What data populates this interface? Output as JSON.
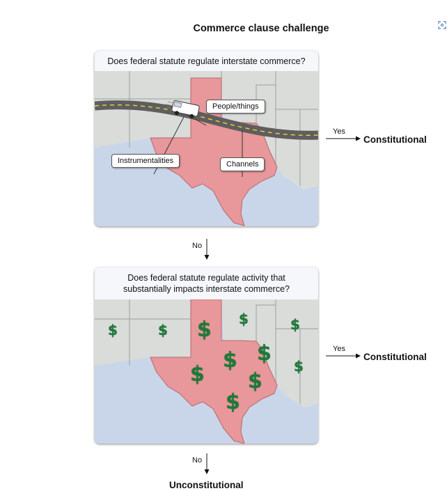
{
  "title": "Commerce clause challenge",
  "step1": {
    "question": "Does federal statute regulate interstate commerce?",
    "callouts": {
      "people_things": "People/things",
      "instrumentalities": "Instrumentalities",
      "channels": "Channels"
    },
    "yes_label": "Yes",
    "yes_result": "Constitutional",
    "no_label": "No"
  },
  "step2": {
    "question_line1": "Does federal statute regulate activity that",
    "question_line2": "substantially impacts interstate commerce?",
    "dollar_symbol": "$",
    "yes_label": "Yes",
    "yes_result": "Constitutional",
    "no_label": "No",
    "no_result": "Unconstitutional"
  },
  "colors": {
    "texas": "#e8979a",
    "land": "#d9dcd9",
    "water": "#c9d6ea",
    "road": "#5e5e5e",
    "road_line": "#f2d23a",
    "dollar": "#1f7a3a"
  },
  "icons": [
    "truck-icon",
    "dollar-icon",
    "arrow-right-icon",
    "arrow-down-icon",
    "expand-icon"
  ]
}
